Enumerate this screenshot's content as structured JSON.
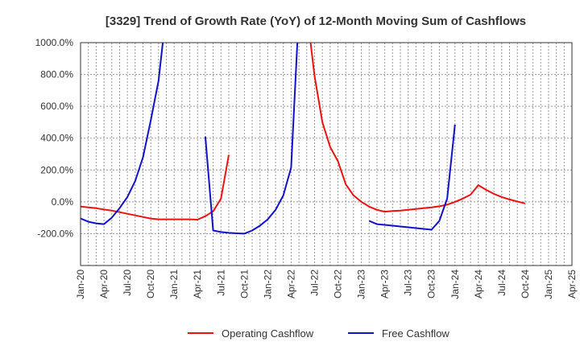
{
  "chart_data": {
    "type": "line",
    "title": "[3329]  Trend of Growth Rate (YoY) of 12-Month Moving Sum of Cashflows",
    "xlabel": "",
    "ylabel": "",
    "ylim": [
      -400,
      1000
    ],
    "y_ticks": [
      1000,
      800,
      600,
      400,
      200,
      0,
      -200
    ],
    "y_tick_labels": [
      "1000.0%",
      "800.0%",
      "600.0%",
      "400.0%",
      "200.0%",
      "0.0%",
      "-200.0%"
    ],
    "x_range": [
      "2020-01",
      "2025-04"
    ],
    "x_tick_labels": [
      "Jan-20",
      "Apr-20",
      "Jul-20",
      "Oct-20",
      "Jan-21",
      "Apr-21",
      "Jul-21",
      "Oct-21",
      "Jan-22",
      "Apr-22",
      "Jul-22",
      "Oct-22",
      "Jan-23",
      "Apr-23",
      "Jul-23",
      "Oct-23",
      "Jan-24",
      "Apr-24",
      "Jul-24",
      "Oct-24",
      "Jan-25",
      "Apr-25"
    ],
    "grid": true,
    "legend_position": "bottom",
    "series": [
      {
        "name": "Operating Cashflow",
        "color": "#ee1111",
        "points": [
          [
            "2020-01",
            -30
          ],
          [
            "2020-02",
            -35
          ],
          [
            "2020-03",
            -40
          ],
          [
            "2020-04",
            -48
          ],
          [
            "2020-05",
            -55
          ],
          [
            "2020-06",
            -65
          ],
          [
            "2020-07",
            -75
          ],
          [
            "2020-08",
            -85
          ],
          [
            "2020-09",
            -95
          ],
          [
            "2020-10",
            -105
          ],
          [
            "2020-11",
            -110
          ],
          [
            "2020-12",
            -110
          ],
          [
            "2021-01",
            -110
          ],
          [
            "2021-02",
            -110
          ],
          [
            "2021-03",
            -110
          ],
          [
            "2021-04",
            -112
          ],
          [
            "2021-05",
            -90
          ],
          [
            "2021-06",
            -60
          ],
          [
            "2021-07",
            20
          ],
          [
            "2021-08",
            295
          ],
          null,
          [
            "2022-06",
            1200
          ],
          [
            "2022-07",
            790
          ],
          [
            "2022-08",
            500
          ],
          [
            "2022-09",
            345
          ],
          [
            "2022-10",
            255
          ],
          [
            "2022-11",
            110
          ],
          [
            "2022-12",
            40
          ],
          [
            "2023-01",
            0
          ],
          [
            "2023-02",
            -30
          ],
          [
            "2023-03",
            -50
          ],
          [
            "2023-04",
            -62
          ],
          [
            "2023-05",
            -58
          ],
          [
            "2023-06",
            -55
          ],
          [
            "2023-07",
            -50
          ],
          [
            "2023-08",
            -45
          ],
          [
            "2023-09",
            -40
          ],
          [
            "2023-10",
            -35
          ],
          [
            "2023-11",
            -28
          ],
          [
            "2023-12",
            -18
          ],
          [
            "2024-01",
            0
          ],
          [
            "2024-02",
            20
          ],
          [
            "2024-03",
            45
          ],
          [
            "2024-04",
            105
          ],
          [
            "2024-05",
            75
          ],
          [
            "2024-06",
            50
          ],
          [
            "2024-07",
            30
          ],
          [
            "2024-08",
            15
          ],
          [
            "2024-09",
            2
          ],
          [
            "2024-10",
            -10
          ]
        ]
      },
      {
        "name": "Free Cashflow",
        "color": "#1111cc",
        "points": [
          [
            "2020-01",
            -105
          ],
          [
            "2020-02",
            -125
          ],
          [
            "2020-03",
            -135
          ],
          [
            "2020-04",
            -140
          ],
          [
            "2020-05",
            -100
          ],
          [
            "2020-06",
            -40
          ],
          [
            "2020-07",
            30
          ],
          [
            "2020-08",
            130
          ],
          [
            "2020-09",
            280
          ],
          [
            "2020-10",
            510
          ],
          [
            "2020-11",
            760
          ],
          [
            "2020-12",
            1200
          ],
          null,
          [
            "2021-05",
            410
          ],
          [
            "2021-06",
            -180
          ],
          [
            "2021-07",
            -190
          ],
          [
            "2021-08",
            -195
          ],
          [
            "2021-09",
            -198
          ],
          [
            "2021-10",
            -200
          ],
          [
            "2021-11",
            -180
          ],
          [
            "2021-12",
            -150
          ],
          [
            "2022-01",
            -110
          ],
          [
            "2022-02",
            -50
          ],
          [
            "2022-03",
            40
          ],
          [
            "2022-04",
            215
          ],
          [
            "2022-05",
            1200
          ],
          null,
          [
            "2023-02",
            -120
          ],
          [
            "2023-03",
            -140
          ],
          [
            "2023-04",
            -145
          ],
          [
            "2023-05",
            -150
          ],
          [
            "2023-06",
            -155
          ],
          [
            "2023-07",
            -160
          ],
          [
            "2023-08",
            -165
          ],
          [
            "2023-09",
            -170
          ],
          [
            "2023-10",
            -175
          ],
          [
            "2023-11",
            -120
          ],
          [
            "2023-12",
            20
          ],
          [
            "2024-01",
            485
          ]
        ]
      }
    ]
  }
}
